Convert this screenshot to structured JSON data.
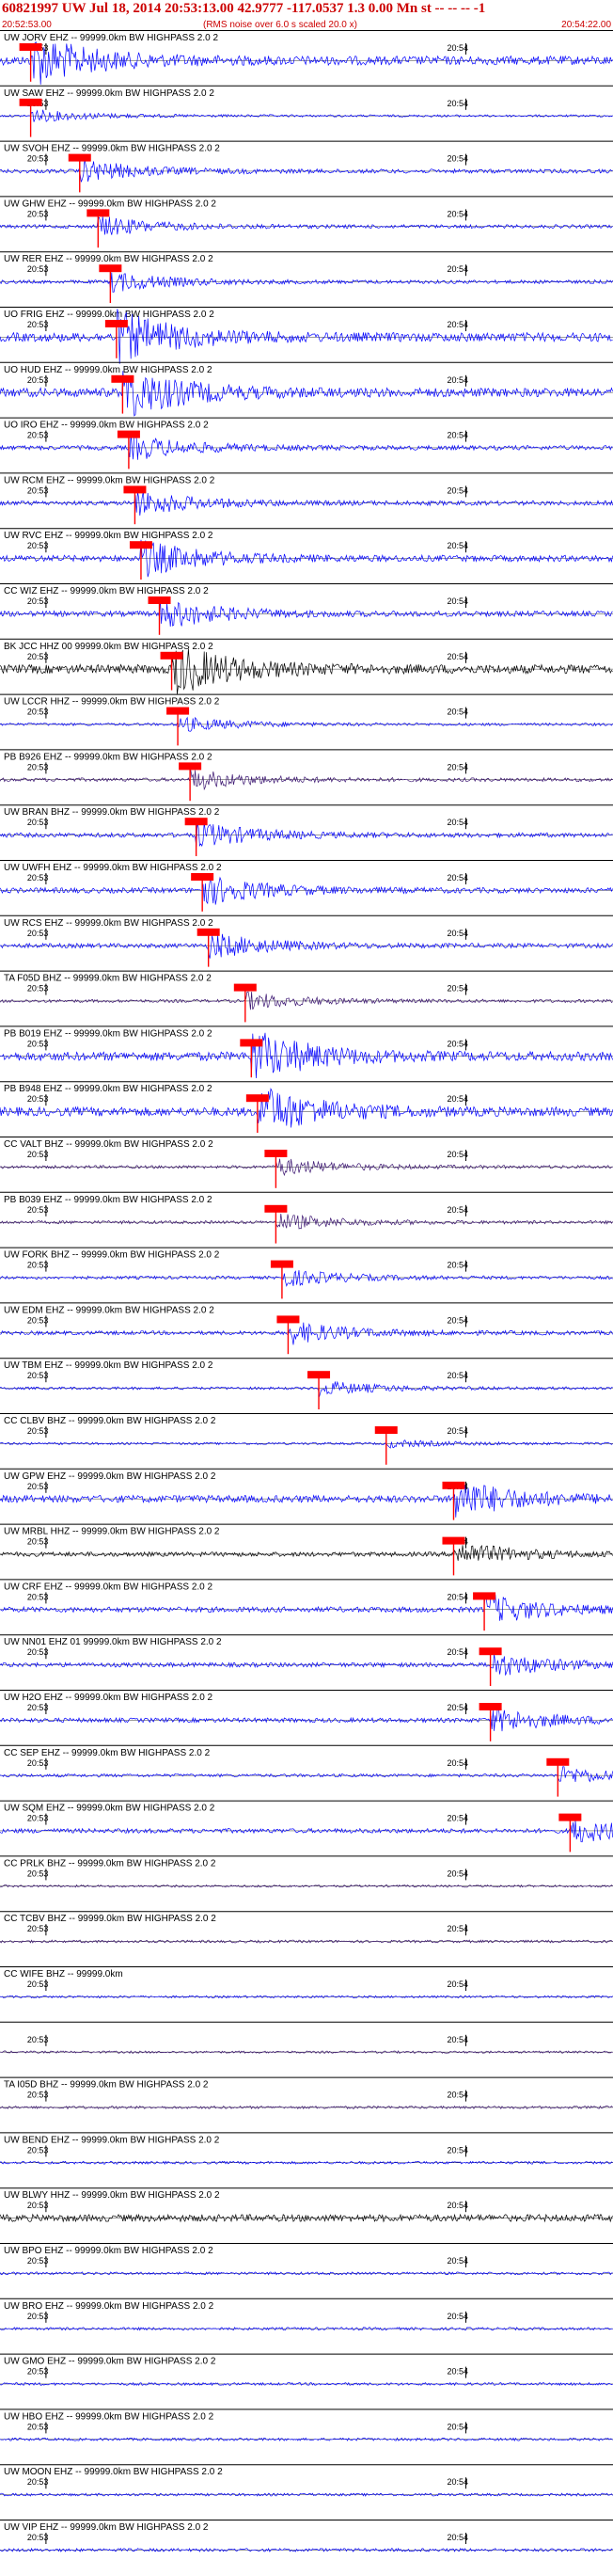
{
  "header": {
    "title": "60821997 UW Jul 18, 2014 20:53:13.00   42.9777 -117.0537  1.3 0.00 Mn st -- -- --  -1",
    "start_time": "20:52:53.00",
    "end_time": "20:54:22.00",
    "note": "(RMS noise over 6.0 s scaled 20.0 x)"
  },
  "chart_data": {
    "type": "line",
    "title": "60821997 UW Jul 18, 2014 20:53:13.00   42.9777 -117.0537  1.3 0.00 Mn st -- -- --  -1",
    "x_range": [
      "20:52:53.00",
      "20:54:22.00"
    ],
    "tick_labels": [
      "20:53",
      "20:54"
    ],
    "grid": false,
    "legend": "none",
    "colors": {
      "waveform_default": "#0000ff",
      "waveform_dark": "#000000",
      "waveform_purple": "#3a1470",
      "pick": "#ff0000",
      "axis": "#000000"
    },
    "traces": [
      {
        "label": "UW JORV EHZ -- 99999.0km BW  HIGHPASS  2.0  2",
        "amp": 1.0,
        "pick": 0.05,
        "color": "blue"
      },
      {
        "label": "UW SAW EHZ -- 99999.0km BW  HIGHPASS  2.0  2",
        "amp": 0.25,
        "pick": 0.05,
        "color": "blue"
      },
      {
        "label": "UW SVOH EHZ -- 99999.0km BW  HIGHPASS  2.0  2",
        "amp": 0.45,
        "pick": 0.13,
        "color": "blue"
      },
      {
        "label": "UW GHW EHZ -- 99999.0km BW  HIGHPASS  2.0  2",
        "amp": 0.4,
        "pick": 0.16,
        "color": "blue"
      },
      {
        "label": "UW RER EHZ -- 99999.0km BW  HIGHPASS  2.0  2",
        "amp": 0.4,
        "pick": 0.18,
        "color": "blue"
      },
      {
        "label": "UO FRIG EHZ -- 99999.0km BW  HIGHPASS  2.0  2",
        "amp": 1.0,
        "pick": 0.19,
        "color": "blue"
      },
      {
        "label": "UO HUD EHZ -- 99999.0km BW  HIGHPASS  2.0  2",
        "amp": 1.0,
        "pick": 0.2,
        "color": "blue"
      },
      {
        "label": "UO IRO EHZ -- 99999.0km BW  HIGHPASS  2.0  2",
        "amp": 0.5,
        "pick": 0.21,
        "color": "blue"
      },
      {
        "label": "UW RCM EHZ -- 99999.0km BW  HIGHPASS  2.0  2",
        "amp": 0.5,
        "pick": 0.22,
        "color": "blue"
      },
      {
        "label": "UW RVC EHZ -- 99999.0km BW  HIGHPASS  2.0  2",
        "amp": 0.7,
        "pick": 0.23,
        "color": "blue"
      },
      {
        "label": "CC WIZ EHZ -- 99999.0km BW  HIGHPASS  2.0  2",
        "amp": 0.6,
        "pick": 0.26,
        "color": "blue"
      },
      {
        "label": "BK JCC HHZ 00 99999.0km BW  HIGHPASS  2.0  2",
        "amp": 1.0,
        "pick": 0.28,
        "color": "black"
      },
      {
        "label": "UW LCCR HHZ -- 99999.0km BW  HIGHPASS  2.0  2",
        "amp": 0.3,
        "pick": 0.29,
        "color": "blue"
      },
      {
        "label": "PB B926 EHZ -- 99999.0km BW  HIGHPASS  2.0  2",
        "amp": 0.4,
        "pick": 0.31,
        "color": "purple"
      },
      {
        "label": "UW BRAN BHZ -- 99999.0km BW  HIGHPASS  2.0  2",
        "amp": 0.5,
        "pick": 0.32,
        "color": "blue"
      },
      {
        "label": "UW UWFH EHZ -- 99999.0km BW  HIGHPASS  2.0  2",
        "amp": 0.6,
        "pick": 0.33,
        "color": "blue"
      },
      {
        "label": "UW RCS EHZ -- 99999.0km BW  HIGHPASS  2.0  2",
        "amp": 0.5,
        "pick": 0.34,
        "color": "blue"
      },
      {
        "label": "TA F05D BHZ -- 99999.0km BW  HIGHPASS  2.0  2",
        "amp": 0.35,
        "pick": 0.4,
        "color": "purple"
      },
      {
        "label": "PB B019 EHZ -- 99999.0km BW  HIGHPASS  2.0  2",
        "amp": 1.0,
        "pick": 0.41,
        "color": "blue"
      },
      {
        "label": "PB B948 EHZ -- 99999.0km BW  HIGHPASS  2.0  2",
        "amp": 1.0,
        "pick": 0.42,
        "color": "blue"
      },
      {
        "label": "CC VALT BHZ -- 99999.0km BW  HIGHPASS  2.0  2",
        "amp": 0.35,
        "pick": 0.45,
        "color": "purple"
      },
      {
        "label": "PB B039 EHZ -- 99999.0km BW  HIGHPASS  2.0  2",
        "amp": 0.35,
        "pick": 0.45,
        "color": "purple"
      },
      {
        "label": "UW FORK BHZ -- 99999.0km BW  HIGHPASS  2.0  2",
        "amp": 0.35,
        "pick": 0.46,
        "color": "blue"
      },
      {
        "label": "UW EDM EHZ -- 99999.0km BW  HIGHPASS  2.0  2",
        "amp": 0.45,
        "pick": 0.47,
        "color": "blue"
      },
      {
        "label": "UW TBM EHZ -- 99999.0km BW  HIGHPASS  2.0  2",
        "amp": 0.3,
        "pick": 0.52,
        "color": "blue"
      },
      {
        "label": "CC CLBV BHZ -- 99999.0km BW  HIGHPASS  2.0  2",
        "amp": 0.15,
        "pick": 0.63,
        "color": "blue"
      },
      {
        "label": "UW GPW EHZ -- 99999.0km BW  HIGHPASS  2.0  2",
        "amp": 0.8,
        "pick": 0.74,
        "color": "blue"
      },
      {
        "label": "UW MRBL HHZ -- 99999.0km BW  HIGHPASS  2.0  2",
        "amp": 0.5,
        "pick": 0.74,
        "color": "black"
      },
      {
        "label": "UW CRF EHZ -- 99999.0km BW  HIGHPASS  2.0  2",
        "amp": 0.6,
        "pick": 0.79,
        "color": "blue"
      },
      {
        "label": "UW NN01 EHZ 01 99999.0km BW  HIGHPASS  2.0  2",
        "amp": 0.5,
        "pick": 0.8,
        "color": "blue"
      },
      {
        "label": "UW H2O EHZ -- 99999.0km BW  HIGHPASS  2.0  2",
        "amp": 0.5,
        "pick": 0.8,
        "color": "blue"
      },
      {
        "label": "CC SEP EHZ -- 99999.0km BW  HIGHPASS  2.0  2",
        "amp": 0.35,
        "pick": 0.91,
        "color": "blue"
      },
      {
        "label": "UW SQM EHZ -- 99999.0km BW  HIGHPASS  2.0  2",
        "amp": 0.5,
        "pick": 0.93,
        "color": "blue"
      },
      {
        "label": "CC PRLK BHZ -- 99999.0km BW  HIGHPASS  2.0  2",
        "amp": 0.25,
        "pick": null,
        "color": "purple"
      },
      {
        "label": "CC TCBV BHZ -- 99999.0km BW  HIGHPASS  2.0  2",
        "amp": 0.3,
        "pick": null,
        "color": "purple"
      },
      {
        "label": "CC WIFE BHZ -- 99999.0km",
        "amp": 0.1,
        "pick": null,
        "color": "blue"
      },
      {
        "label": "",
        "amp": 0.25,
        "pick": null,
        "color": "purple"
      },
      {
        "label": "TA I05D BHZ -- 99999.0km BW  HIGHPASS  2.0  2",
        "amp": 0.3,
        "pick": null,
        "color": "purple"
      },
      {
        "label": "UW BEND EHZ -- 99999.0km BW  HIGHPASS  2.0  2",
        "amp": 0.3,
        "pick": null,
        "color": "blue"
      },
      {
        "label": "UW BLWY HHZ -- 99999.0km BW  HIGHPASS  2.0  2",
        "amp": 0.8,
        "pick": null,
        "color": "black"
      },
      {
        "label": "UW BPO EHZ -- 99999.0km BW  HIGHPASS  2.0  2",
        "amp": 0.3,
        "pick": null,
        "color": "blue"
      },
      {
        "label": "UW BRO EHZ -- 99999.0km BW  HIGHPASS  2.0  2",
        "amp": 0.3,
        "pick": null,
        "color": "blue"
      },
      {
        "label": "UW GMO EHZ -- 99999.0km BW  HIGHPASS  2.0  2",
        "amp": 0.3,
        "pick": null,
        "color": "blue"
      },
      {
        "label": "UW HBO EHZ -- 99999.0km BW  HIGHPASS  2.0  2",
        "amp": 0.3,
        "pick": null,
        "color": "blue"
      },
      {
        "label": "UW MOON EHZ -- 99999.0km BW  HIGHPASS  2.0  2",
        "amp": 0.3,
        "pick": null,
        "color": "blue"
      },
      {
        "label": "UW VIP EHZ -- 99999.0km BW  HIGHPASS  2.0  2",
        "amp": 0.35,
        "pick": null,
        "color": "blue"
      }
    ]
  }
}
